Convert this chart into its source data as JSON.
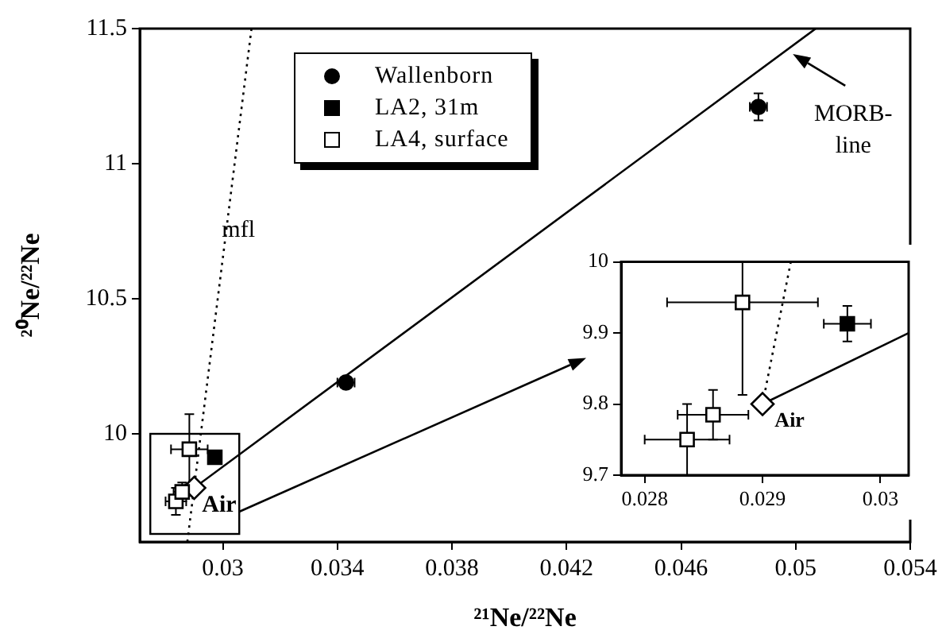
{
  "chart_data": [
    {
      "type": "scatter",
      "xlabel": "²¹Ne/²²Ne",
      "ylabel": "²⁰Ne/²²Ne",
      "xlim": [
        0.0271,
        0.054
      ],
      "ylim": [
        9.6,
        11.5
      ],
      "xticks": [
        0.03,
        0.034,
        0.038,
        0.042,
        0.046,
        0.05,
        0.054
      ],
      "yticks": [
        10,
        10.5,
        11,
        11.5
      ],
      "grid": false,
      "legend": "top",
      "series": [
        {
          "name": "Wallenborn",
          "color": "#000000",
          "marker": "circle",
          "x": [
            0.0343,
            0.0487
          ],
          "values": [
            10.19,
            11.21
          ],
          "errors": [
            null,
            0.05
          ],
          "xerrors": [
            0.0003,
            0.0003
          ]
        },
        {
          "name": "LA2, 31m",
          "color": "#000000",
          "marker": "square",
          "x": [
            0.02972
          ],
          "values": [
            9.913
          ]
        },
        {
          "name": "LA4, surface",
          "color": "#ffffff",
          "marker": "square",
          "x": [
            0.02836,
            0.02858,
            0.02883
          ],
          "values": [
            9.75,
            9.785,
            9.943
          ],
          "errors": [
            0.05,
            0.035,
            0.13
          ],
          "xerrors": [
            0.00036,
            0.0003,
            0.00064
          ]
        },
        {
          "color": "#ffffff",
          "marker": "diamond",
          "x": [
            0.029
          ],
          "values": [
            9.8
          ]
        },
        {
          "type": "line",
          "color": "#000000",
          "marker": "none",
          "line_style": "solid",
          "x": [
            0.029,
            0.0507
          ],
          "values": [
            9.8,
            11.5
          ]
        },
        {
          "type": "line",
          "color": "#000000",
          "marker": "none",
          "line_style": "dotted",
          "x": [
            0.02876,
            0.031
          ],
          "values": [
            9.6,
            11.5
          ]
        }
      ],
      "annotations": [
        "mfl",
        "MORB-line",
        "Air"
      ]
    },
    {
      "type": "scatter",
      "xlim": [
        0.0278,
        0.03024
      ],
      "ylim": [
        9.7,
        10
      ],
      "xticks": [
        0.028,
        0.029,
        0.03
      ],
      "yticks": [
        9.7,
        9.8,
        9.9,
        10
      ],
      "grid": false,
      "legend": false,
      "series": [
        {
          "color": "#000000",
          "marker": "square",
          "x": [
            0.02972
          ],
          "values": [
            9.913
          ],
          "errors": [
            0.025
          ],
          "xerrors": [
            0.0002
          ]
        },
        {
          "color": "#ffffff",
          "marker": "square",
          "x": [
            0.02836,
            0.02858,
            0.02883
          ],
          "values": [
            9.75,
            9.785,
            9.943
          ],
          "errors": [
            0.05,
            0.035,
            0.13
          ],
          "xerrors": [
            0.00036,
            0.0003,
            0.00064
          ]
        },
        {
          "color": "#ffffff",
          "marker": "diamond",
          "x": [
            0.029
          ],
          "values": [
            9.8
          ]
        },
        {
          "type": "line",
          "color": "#000000",
          "marker": "none",
          "line_style": "solid",
          "x": [
            0.029,
            0.03024
          ],
          "values": [
            9.8,
            9.9
          ]
        },
        {
          "type": "line",
          "color": "#000000",
          "marker": "none",
          "line_style": "dotted",
          "x": [
            0.029,
            0.02924
          ],
          "values": [
            9.8,
            10
          ]
        }
      ],
      "annotations": [
        "Air"
      ]
    }
  ]
}
